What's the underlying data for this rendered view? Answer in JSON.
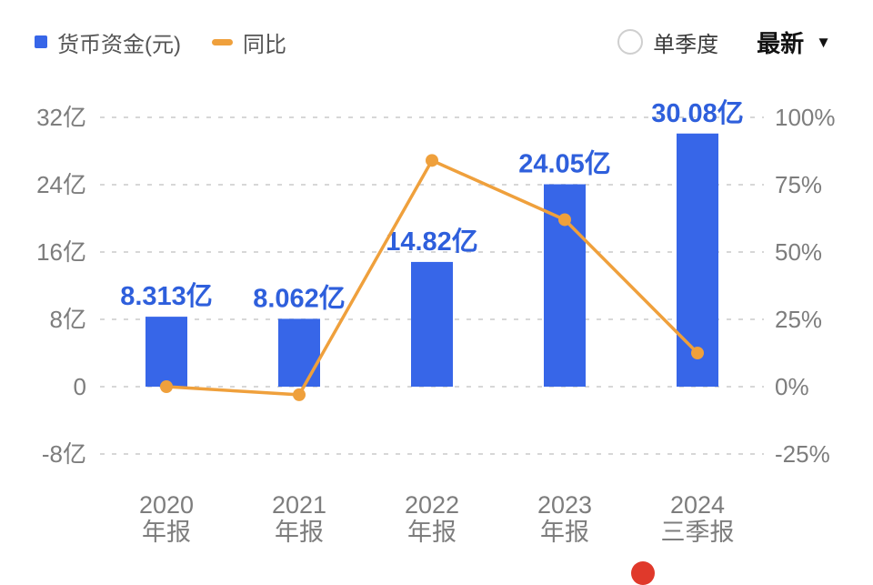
{
  "legend": {
    "bar_label": "货币资金(元)",
    "line_label": "同比"
  },
  "controls": {
    "radio_label": "单季度",
    "dropdown_label": "最新",
    "caret": "▼"
  },
  "colors": {
    "bar": "#3766e8",
    "line": "#efa03c",
    "value_label": "#2e5fdc",
    "axis_text": "#7d7d7d",
    "grid": "#d7d7d7"
  },
  "chart_data": {
    "type": "bar",
    "title": "",
    "categories": [
      [
        "2020",
        "年报"
      ],
      [
        "2021",
        "年报"
      ],
      [
        "2022",
        "年报"
      ],
      [
        "2023",
        "年报"
      ],
      [
        "2024",
        "三季报"
      ]
    ],
    "series": [
      {
        "name": "货币资金(元)",
        "type": "bar",
        "unit": "亿",
        "values": [
          8.313,
          8.062,
          14.82,
          24.05,
          30.08
        ],
        "labels": [
          "8.313亿",
          "8.062亿",
          "14.82亿",
          "24.05亿",
          "30.08亿"
        ]
      },
      {
        "name": "同比",
        "type": "line",
        "unit": "%",
        "values": [
          0,
          -3,
          84,
          62,
          12.5
        ]
      }
    ],
    "left_axis": {
      "range": [
        -8,
        32
      ],
      "ticks": [
        {
          "v": 32,
          "label": "32亿"
        },
        {
          "v": 24,
          "label": "24亿"
        },
        {
          "v": 16,
          "label": "16亿"
        },
        {
          "v": 8,
          "label": "8亿"
        },
        {
          "v": 0,
          "label": "0"
        },
        {
          "v": -8,
          "label": "-8亿"
        }
      ]
    },
    "right_axis": {
      "range": [
        -25,
        100
      ],
      "ticks": [
        {
          "p": 100,
          "label": "100%"
        },
        {
          "p": 75,
          "label": "75%"
        },
        {
          "p": 50,
          "label": "50%"
        },
        {
          "p": 25,
          "label": "25%"
        },
        {
          "p": 0,
          "label": "0%"
        },
        {
          "p": -25,
          "label": "-25%"
        }
      ]
    },
    "grid": "dashed-horizontal",
    "legend_position": "top-left"
  }
}
